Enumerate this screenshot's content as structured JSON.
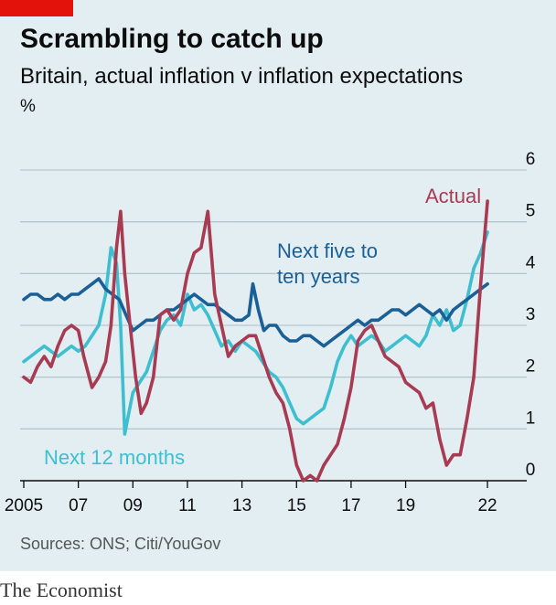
{
  "title": "Scrambling to catch up",
  "subtitle": "Britain, actual inflation v inflation expectations",
  "unit": "%",
  "source": "Sources: ONS; Citi/YouGov",
  "brand": "The Economist",
  "colors": {
    "panel": "#e3eef3",
    "grid": "#b7c6ce",
    "actual": "#a83a52",
    "five_to_ten": "#1a6096",
    "twelve_months": "#3ebfd0",
    "brand_red": "#e3120b"
  },
  "chart_data": {
    "type": "line",
    "xlim": [
      2005,
      2022.3
    ],
    "ylim": [
      0,
      6
    ],
    "grid": true,
    "x_ticks": [
      2005,
      2007,
      2009,
      2011,
      2013,
      2015,
      2017,
      2019,
      2022
    ],
    "x_tick_labels": [
      "2005",
      "07",
      "09",
      "11",
      "13",
      "15",
      "17",
      "19",
      "22"
    ],
    "y_ticks": [
      0,
      1,
      2,
      3,
      4,
      5,
      6
    ],
    "y_tick_labels": [
      "0",
      "1",
      "2",
      "3",
      "4",
      "5",
      "6"
    ],
    "series": [
      {
        "name": "Next 12 months",
        "key": "twelve_months",
        "x": [
          2005.0,
          2005.25,
          2005.5,
          2005.75,
          2006.0,
          2006.25,
          2006.5,
          2006.75,
          2007.0,
          2007.25,
          2007.5,
          2007.75,
          2008.0,
          2008.2,
          2008.4,
          2008.55,
          2008.7,
          2008.85,
          2009.0,
          2009.25,
          2009.5,
          2009.75,
          2010.0,
          2010.25,
          2010.5,
          2010.75,
          2011.0,
          2011.25,
          2011.5,
          2011.75,
          2012.0,
          2012.25,
          2012.5,
          2012.75,
          2013.0,
          2013.25,
          2013.5,
          2013.75,
          2014.0,
          2014.25,
          2014.5,
          2014.75,
          2015.0,
          2015.25,
          2015.5,
          2015.75,
          2016.0,
          2016.25,
          2016.5,
          2016.75,
          2017.0,
          2017.25,
          2017.5,
          2017.75,
          2018.0,
          2018.25,
          2018.5,
          2018.75,
          2019.0,
          2019.25,
          2019.5,
          2019.75,
          2020.0,
          2020.25,
          2020.5,
          2020.75,
          2021.0,
          2021.25,
          2021.5,
          2021.75,
          2022.0
        ],
        "y": [
          2.3,
          2.4,
          2.5,
          2.6,
          2.5,
          2.4,
          2.5,
          2.6,
          2.5,
          2.6,
          2.8,
          3.0,
          3.6,
          4.5,
          4.2,
          3.0,
          0.9,
          1.3,
          1.7,
          1.9,
          2.1,
          2.5,
          2.9,
          3.1,
          3.2,
          3.0,
          3.6,
          3.3,
          3.4,
          3.2,
          2.9,
          2.6,
          2.7,
          2.5,
          2.7,
          2.6,
          2.5,
          2.3,
          2.1,
          2.0,
          1.8,
          1.5,
          1.2,
          1.1,
          1.2,
          1.3,
          1.4,
          1.8,
          2.3,
          2.6,
          2.8,
          2.6,
          2.7,
          2.8,
          2.7,
          2.5,
          2.6,
          2.7,
          2.8,
          2.7,
          2.6,
          2.8,
          3.2,
          3.0,
          3.3,
          2.9,
          3.0,
          3.5,
          4.1,
          4.4,
          4.8
        ]
      },
      {
        "name": "Next five to ten years",
        "key": "five_to_ten",
        "x": [
          2005.0,
          2005.25,
          2005.5,
          2005.75,
          2006.0,
          2006.25,
          2006.5,
          2006.75,
          2007.0,
          2007.25,
          2007.5,
          2007.75,
          2008.0,
          2008.25,
          2008.5,
          2008.75,
          2009.0,
          2009.25,
          2009.5,
          2009.75,
          2010.0,
          2010.25,
          2010.5,
          2010.75,
          2011.0,
          2011.25,
          2011.5,
          2011.75,
          2012.0,
          2012.25,
          2012.5,
          2012.75,
          2013.0,
          2013.25,
          2013.4,
          2013.6,
          2013.8,
          2014.0,
          2014.25,
          2014.5,
          2014.75,
          2015.0,
          2015.25,
          2015.5,
          2015.75,
          2016.0,
          2016.25,
          2016.5,
          2016.75,
          2017.0,
          2017.25,
          2017.5,
          2017.75,
          2018.0,
          2018.25,
          2018.5,
          2018.75,
          2019.0,
          2019.25,
          2019.5,
          2019.75,
          2020.0,
          2020.25,
          2020.5,
          2020.75,
          2021.0,
          2021.25,
          2021.5,
          2021.75,
          2022.0
        ],
        "y": [
          3.5,
          3.6,
          3.6,
          3.5,
          3.5,
          3.6,
          3.5,
          3.6,
          3.6,
          3.7,
          3.8,
          3.9,
          3.7,
          3.6,
          3.5,
          3.2,
          2.9,
          3.0,
          3.1,
          3.1,
          3.2,
          3.3,
          3.3,
          3.4,
          3.5,
          3.6,
          3.5,
          3.4,
          3.4,
          3.3,
          3.2,
          3.1,
          3.1,
          3.2,
          3.8,
          3.3,
          2.9,
          3.0,
          3.0,
          2.8,
          2.7,
          2.7,
          2.8,
          2.8,
          2.7,
          2.6,
          2.7,
          2.8,
          2.9,
          3.0,
          3.1,
          3.0,
          3.1,
          3.1,
          3.2,
          3.3,
          3.3,
          3.2,
          3.3,
          3.4,
          3.3,
          3.2,
          3.3,
          3.1,
          3.3,
          3.4,
          3.5,
          3.6,
          3.7,
          3.8
        ]
      },
      {
        "name": "Actual",
        "key": "actual",
        "x": [
          2005.0,
          2005.25,
          2005.5,
          2005.75,
          2006.0,
          2006.25,
          2006.5,
          2006.75,
          2007.0,
          2007.2,
          2007.5,
          2007.75,
          2008.0,
          2008.2,
          2008.4,
          2008.55,
          2008.7,
          2008.9,
          2009.1,
          2009.3,
          2009.5,
          2009.75,
          2010.0,
          2010.25,
          2010.5,
          2010.75,
          2011.0,
          2011.25,
          2011.5,
          2011.75,
          2012.0,
          2012.25,
          2012.5,
          2012.75,
          2013.0,
          2013.25,
          2013.5,
          2013.75,
          2014.0,
          2014.25,
          2014.5,
          2014.75,
          2015.0,
          2015.25,
          2015.5,
          2015.75,
          2016.0,
          2016.25,
          2016.5,
          2016.75,
          2017.0,
          2017.25,
          2017.5,
          2017.75,
          2018.0,
          2018.25,
          2018.5,
          2018.75,
          2019.0,
          2019.25,
          2019.5,
          2019.75,
          2020.0,
          2020.25,
          2020.5,
          2020.75,
          2021.0,
          2021.25,
          2021.5,
          2021.75,
          2022.0
        ],
        "y": [
          2.0,
          1.9,
          2.2,
          2.4,
          2.2,
          2.6,
          2.9,
          3.0,
          2.9,
          2.4,
          1.8,
          2.0,
          2.3,
          3.0,
          4.5,
          5.2,
          4.0,
          3.0,
          2.0,
          1.3,
          1.5,
          2.0,
          3.2,
          3.3,
          3.1,
          3.3,
          4.0,
          4.4,
          4.5,
          5.2,
          3.6,
          3.0,
          2.4,
          2.6,
          2.7,
          2.8,
          2.8,
          2.4,
          2.0,
          1.7,
          1.5,
          1.0,
          0.3,
          0.0,
          0.1,
          0.0,
          0.3,
          0.5,
          0.7,
          1.2,
          1.8,
          2.7,
          2.9,
          3.0,
          2.7,
          2.4,
          2.3,
          2.2,
          1.9,
          1.8,
          1.7,
          1.4,
          1.5,
          0.8,
          0.3,
          0.5,
          0.5,
          1.2,
          2.0,
          3.8,
          5.4
        ]
      }
    ],
    "annotations": [
      {
        "series": "actual",
        "text": "Actual"
      },
      {
        "series": "five_to_ten",
        "lines": [
          "Next five to",
          "ten years"
        ]
      },
      {
        "series": "twelve_months",
        "text": "Next 12 months"
      }
    ]
  }
}
